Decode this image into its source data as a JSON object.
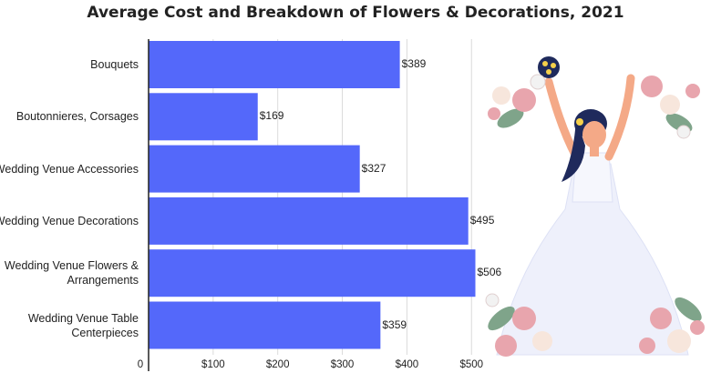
{
  "chart_data": {
    "type": "bar",
    "orientation": "horizontal",
    "title": "Average Cost and Breakdown of Flowers & Decorations, 2021",
    "categories": [
      "Bouquets",
      "Boutonnieres, Corsages",
      "Wedding Venue Accessories",
      "Wedding Venue Decorations",
      "Wedding Venue Flowers & Arrangements",
      "Wedding Venue Table Centerpieces"
    ],
    "values": [
      389,
      169,
      327,
      495,
      506,
      359
    ],
    "value_labels": [
      "$389",
      "$169",
      "$327",
      "$495",
      "$506",
      "$359"
    ],
    "xlim": [
      0,
      500
    ],
    "x_ticks": [
      0,
      100,
      200,
      300,
      400,
      500
    ],
    "x_tick_labels": [
      "0",
      "$100",
      "$200",
      "$300",
      "$400",
      "$500"
    ],
    "grid": "vertical",
    "bar_color": "#5468fa",
    "xlabel": "",
    "ylabel": ""
  },
  "illustration": {
    "icon": "bride-with-bouquet-and-flowers-illustration",
    "dress_color": "#eef0fb",
    "skin_color": "#f4a987",
    "hair_color": "#1f2a5c",
    "flower_colors": [
      "#e8a5ad",
      "#f7e6dc",
      "#f2f2f2"
    ],
    "leaf_color": "#7fa48a"
  }
}
